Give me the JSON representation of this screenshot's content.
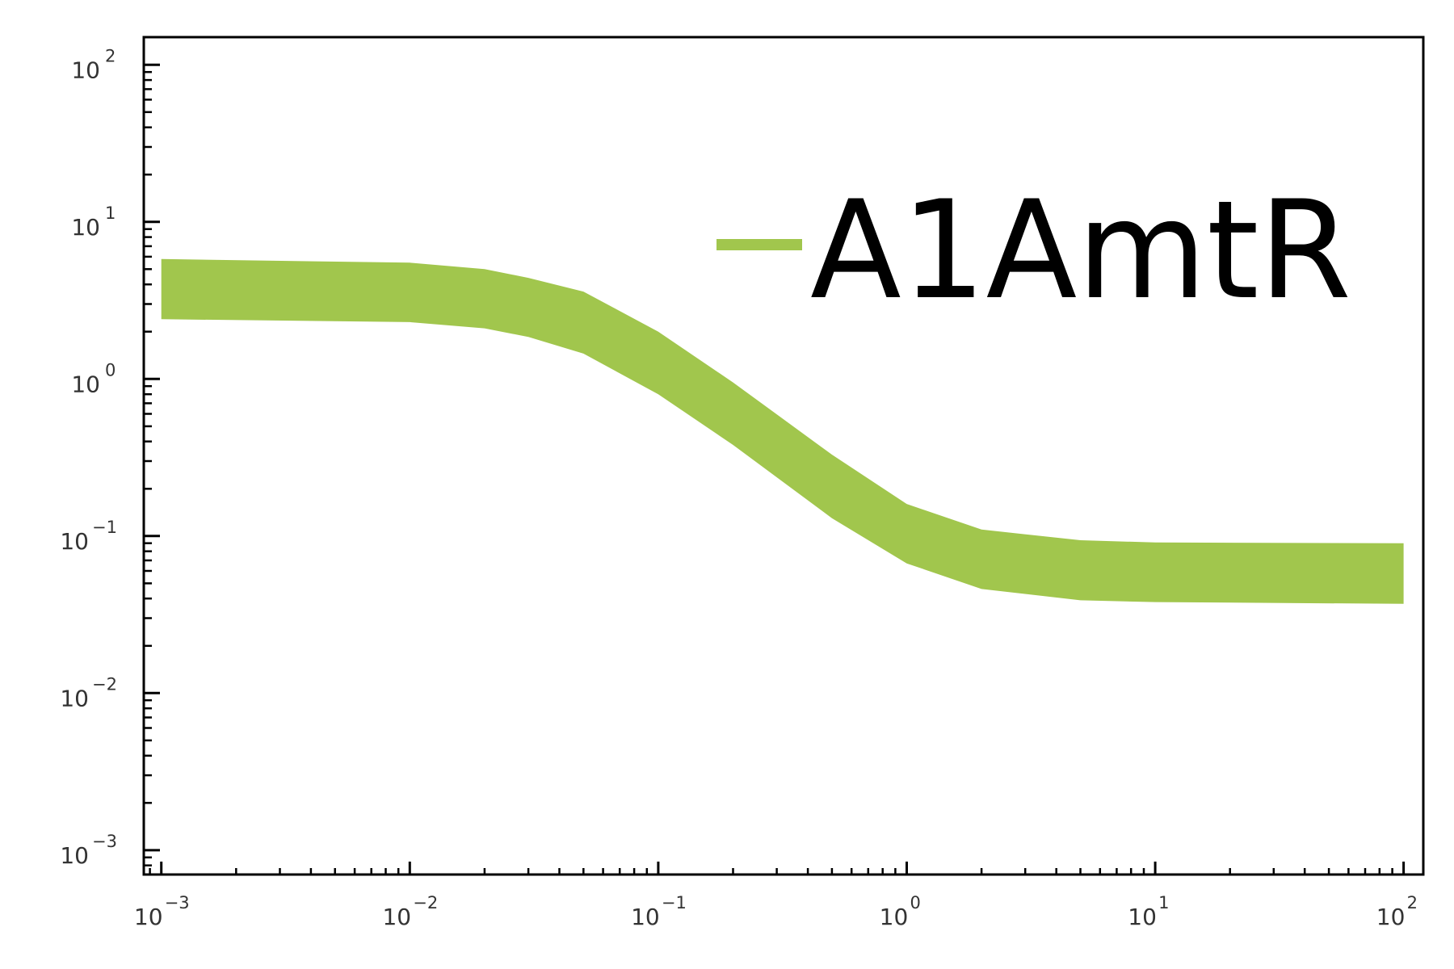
{
  "chart_data": {
    "type": "area",
    "title": "",
    "xlabel": "",
    "ylabel": "",
    "xscale": "log",
    "yscale": "log",
    "xlim": [
      0.00085,
      120
    ],
    "ylim": [
      0.0007,
      150
    ],
    "grid": false,
    "legend_position": "top-right",
    "x_ticks": [
      {
        "base": "10",
        "exp": "−3"
      },
      {
        "base": "10",
        "exp": "−2"
      },
      {
        "base": "10",
        "exp": "−1"
      },
      {
        "base": "10",
        "exp": "0"
      },
      {
        "base": "10",
        "exp": "1"
      },
      {
        "base": "10",
        "exp": "2"
      }
    ],
    "y_ticks": [
      {
        "base": "10",
        "exp": "−3"
      },
      {
        "base": "10",
        "exp": "−2"
      },
      {
        "base": "10",
        "exp": "−1"
      },
      {
        "base": "10",
        "exp": "0"
      },
      {
        "base": "10",
        "exp": "1"
      },
      {
        "base": "10",
        "exp": "2"
      }
    ],
    "series": [
      {
        "name": "A1AmtR",
        "color": "#a1c64d",
        "x": [
          0.001,
          0.01,
          0.02,
          0.03,
          0.05,
          0.1,
          0.2,
          0.5,
          1,
          2,
          5,
          10,
          100
        ],
        "upper": [
          5.8,
          5.5,
          5.0,
          4.4,
          3.6,
          2.0,
          0.95,
          0.33,
          0.16,
          0.11,
          0.094,
          0.091,
          0.09
        ],
        "lower": [
          2.4,
          2.3,
          2.1,
          1.85,
          1.45,
          0.8,
          0.38,
          0.13,
          0.067,
          0.046,
          0.039,
          0.038,
          0.037
        ]
      }
    ]
  }
}
